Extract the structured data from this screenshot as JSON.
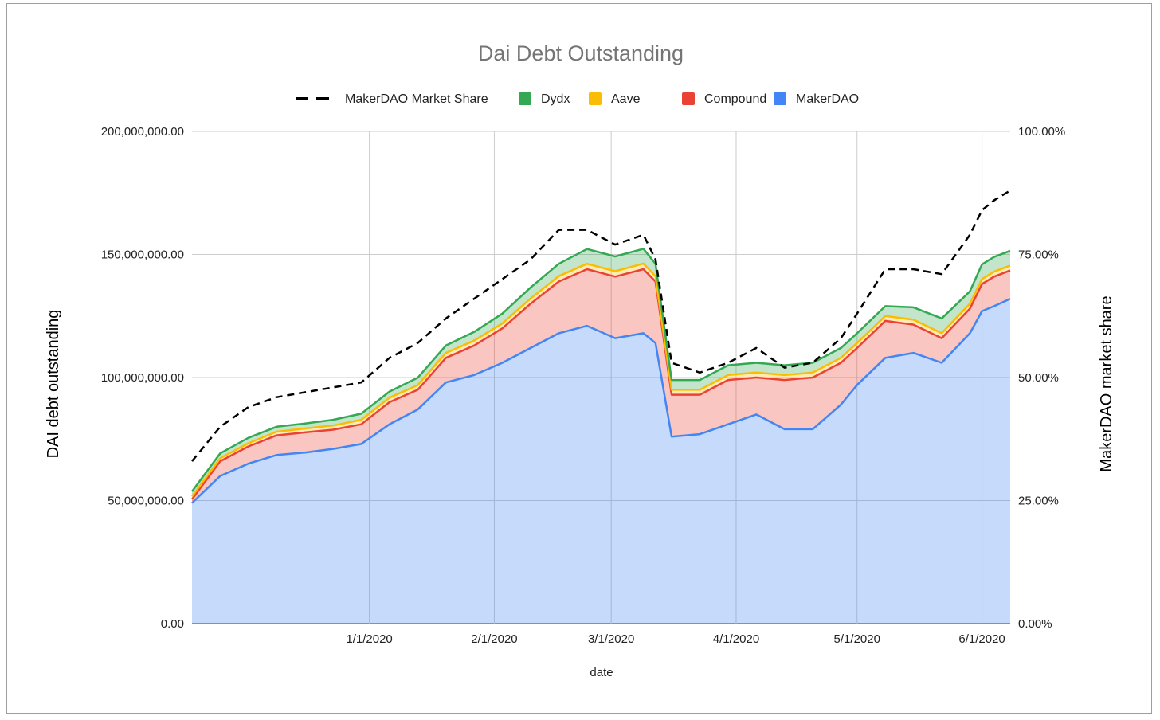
{
  "chart_data": {
    "type": "area",
    "title": "Dai Debt Outstanding",
    "xlabel": "date",
    "ylabel": "DAI debt outstanding",
    "y2label": "MakerDAO market share",
    "stacked": true,
    "legend_position": "top",
    "grid": true,
    "ylim": [
      0,
      200000000
    ],
    "y2lim": [
      0,
      1
    ],
    "y_ticks": [
      "0.00",
      "50,000,000.00",
      "100,000,000.00",
      "150,000,000.00",
      "200,000,000.00"
    ],
    "y_tick_values": [
      0,
      50000000,
      100000000,
      150000000,
      200000000
    ],
    "y2_ticks": [
      "0.00%",
      "25.00%",
      "50.00%",
      "75.00%",
      "100.00%"
    ],
    "y2_tick_values": [
      0,
      0.25,
      0.5,
      0.75,
      1.0
    ],
    "x_ticks": [
      "1/1/2020",
      "2/1/2020",
      "3/1/2020",
      "4/1/2020",
      "5/1/2020",
      "6/1/2020"
    ],
    "x_tick_values": [
      "2020-01-01",
      "2020-02-01",
      "2020-03-01",
      "2020-04-01",
      "2020-05-01",
      "2020-06-01"
    ],
    "xlim": [
      "2019-11-18",
      "2020-06-08"
    ],
    "x": [
      "2019-11-18",
      "2019-11-25",
      "2019-12-02",
      "2019-12-09",
      "2019-12-16",
      "2019-12-23",
      "2019-12-30",
      "2020-01-06",
      "2020-01-13",
      "2020-01-20",
      "2020-01-27",
      "2020-02-03",
      "2020-02-10",
      "2020-02-17",
      "2020-02-24",
      "2020-03-02",
      "2020-03-09",
      "2020-03-12",
      "2020-03-16",
      "2020-03-23",
      "2020-03-30",
      "2020-04-06",
      "2020-04-13",
      "2020-04-20",
      "2020-04-27",
      "2020-05-01",
      "2020-05-08",
      "2020-05-15",
      "2020-05-22",
      "2020-05-29",
      "2020-06-01",
      "2020-06-04",
      "2020-06-08"
    ],
    "series": [
      {
        "name": "MakerDAO",
        "kind": "area",
        "color": "#4285f4",
        "values": [
          49000000,
          60000000,
          65000000,
          68500000,
          69500000,
          71000000,
          73000000,
          81000000,
          87000000,
          98000000,
          101000000,
          106000000,
          112000000,
          118000000,
          121000000,
          116000000,
          118000000,
          114000000,
          76000000,
          77000000,
          81000000,
          85000000,
          79000000,
          79000000,
          89000000,
          97000000,
          108000000,
          110000000,
          106000000,
          118000000,
          127000000,
          129000000,
          132000000
        ]
      },
      {
        "name": "Compound",
        "kind": "area",
        "color": "#ea4335",
        "values": [
          1500000,
          6000000,
          7000000,
          8000000,
          8200000,
          7800000,
          8000000,
          9000000,
          8000000,
          10000000,
          12000000,
          14000000,
          18000000,
          21000000,
          23000000,
          25000000,
          26000000,
          25000000,
          17000000,
          16000000,
          18000000,
          15000000,
          20000000,
          21000000,
          17000000,
          15000000,
          15000000,
          11500000,
          10000000,
          10000000,
          11000000,
          12000000,
          11500000
        ]
      },
      {
        "name": "Aave",
        "kind": "area",
        "color": "#fbbc04",
        "values": [
          1200000,
          1200000,
          1300000,
          1500000,
          1600000,
          1700000,
          1800000,
          1800000,
          1900000,
          2000000,
          2000000,
          2000000,
          2100000,
          2200000,
          2200000,
          2200000,
          2300000,
          2200000,
          2000000,
          2000000,
          2000000,
          2000000,
          2000000,
          2000000,
          2000000,
          2000000,
          2000000,
          2000000,
          2000000,
          2000000,
          2000000,
          2000000,
          2000000
        ]
      },
      {
        "name": "Dydx",
        "kind": "area",
        "color": "#34a853",
        "values": [
          2000000,
          2000000,
          2200000,
          2000000,
          2000000,
          2300000,
          2500000,
          2500000,
          3000000,
          3000000,
          3500000,
          4000000,
          4500000,
          5000000,
          6000000,
          6000000,
          6000000,
          5000000,
          4000000,
          4000000,
          4000000,
          4000000,
          4000000,
          4000000,
          4000000,
          4000000,
          4000000,
          5000000,
          6000000,
          5000000,
          6000000,
          6000000,
          6000000
        ]
      },
      {
        "name": "MakerDAO Market Share",
        "kind": "line",
        "axis": "right",
        "color": "#000000",
        "values": [
          0.33,
          0.4,
          0.44,
          0.46,
          0.47,
          0.48,
          0.49,
          0.54,
          0.57,
          0.62,
          0.66,
          0.7,
          0.74,
          0.8,
          0.8,
          0.77,
          0.79,
          0.74,
          0.53,
          0.51,
          0.53,
          0.56,
          0.52,
          0.53,
          0.58,
          0.63,
          0.72,
          0.72,
          0.71,
          0.79,
          0.84,
          0.86,
          0.88
        ]
      }
    ]
  }
}
